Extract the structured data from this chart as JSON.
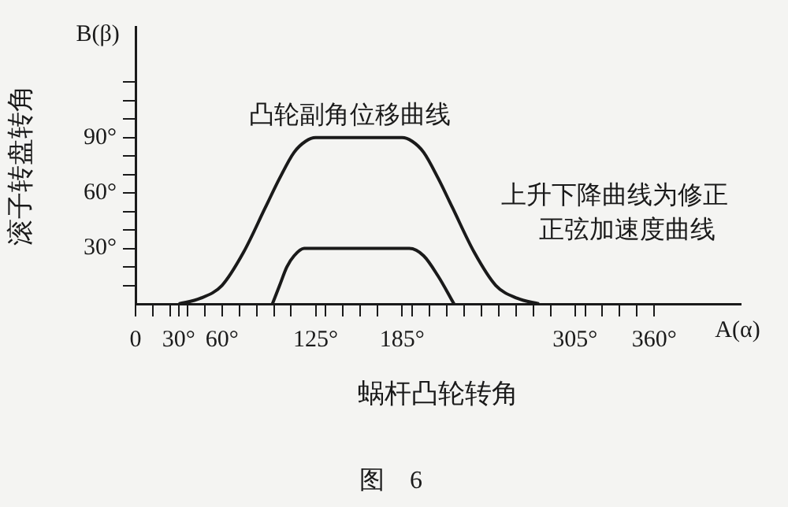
{
  "chart_data": {
    "type": "line",
    "xlabel": "蜗杆凸轮转角",
    "ylabel": "滚子转盘转角",
    "annotations": [
      "B(β)",
      "A(α)",
      "凸轮副角位移曲线",
      "上升下降曲线为修正",
      "正弦加速度曲线",
      "图　6"
    ],
    "series": [
      {
        "color": "#1a1a1a",
        "x": [
          30,
          45,
          60,
          75,
          90,
          100,
          110,
          118,
          125,
          185,
          192,
          200,
          210,
          220,
          235,
          250,
          265,
          280
        ],
        "values": [
          0,
          3,
          10,
          28,
          52,
          68,
          82,
          88,
          90,
          90,
          88,
          82,
          68,
          52,
          28,
          10,
          3,
          0
        ]
      },
      {
        "color": "#1a1a1a",
        "x": [
          95,
          100,
          105,
          110,
          117,
          190,
          200,
          210,
          221
        ],
        "values": [
          0,
          10,
          20,
          26,
          30,
          30,
          26,
          15,
          0
        ]
      }
    ],
    "xlim": [
      0,
      420
    ],
    "ylim": [
      0,
      150
    ],
    "xticks": [
      0,
      {
        "value": 12,
        "label": null
      },
      {
        "value": 24,
        "label": null
      },
      {
        "value": 30,
        "label": "30°"
      },
      {
        "value": 36,
        "label": null
      },
      {
        "value": 48,
        "label": null
      },
      {
        "value": 60,
        "label": "60°"
      },
      {
        "value": 72,
        "label": null
      },
      {
        "value": 84,
        "label": null
      },
      {
        "value": 96,
        "label": null
      },
      {
        "value": 108,
        "label": null
      },
      {
        "value": 125,
        "label": "125°"
      },
      {
        "value": 132,
        "label": null
      },
      {
        "value": 144,
        "label": null
      },
      {
        "value": 156,
        "label": null
      },
      {
        "value": 168,
        "label": null
      },
      {
        "value": 185,
        "label": "185°"
      },
      {
        "value": 192,
        "label": null
      },
      {
        "value": 204,
        "label": null
      },
      {
        "value": 216,
        "label": null
      },
      {
        "value": 228,
        "label": null
      },
      {
        "value": 240,
        "label": null
      },
      {
        "value": 252,
        "label": null
      },
      {
        "value": 264,
        "label": null
      },
      {
        "value": 276,
        "label": null
      },
      {
        "value": 288,
        "label": null
      },
      {
        "value": 305,
        "label": "305°"
      },
      {
        "value": 312,
        "label": null
      },
      {
        "value": 324,
        "label": null
      },
      {
        "value": 336,
        "label": null
      },
      {
        "value": 348,
        "label": null
      },
      {
        "value": 360,
        "label": "360°"
      }
    ],
    "yticks": [
      {
        "value": 10,
        "label": null
      },
      {
        "value": 20,
        "label": null
      },
      {
        "value": 30,
        "label": "30°"
      },
      {
        "value": 40,
        "label": null
      },
      {
        "value": 50,
        "label": null
      },
      {
        "value": 60,
        "label": "60°"
      },
      {
        "value": 70,
        "label": null
      },
      {
        "value": 80,
        "label": null
      },
      {
        "value": 90,
        "label": "90°"
      },
      {
        "value": 100,
        "label": null
      },
      {
        "value": 110,
        "label": null
      },
      {
        "value": 120,
        "label": null
      }
    ],
    "grid": false,
    "legend": false,
    "marker": "none",
    "line_style": "solid"
  }
}
